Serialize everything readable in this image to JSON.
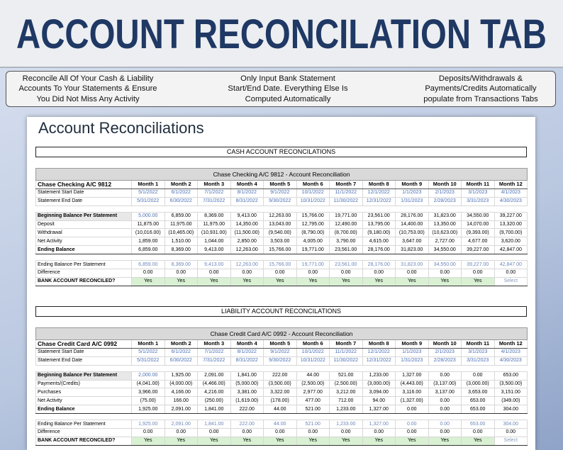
{
  "header": {
    "title": "ACCOUNT RECONCILATION TAB"
  },
  "features": [
    "Reconcile All Of Your Cash & Liability Accounts To Your Statements & Ensure You Did Not Miss Any Activity",
    "Only Input Bank Statement Start/End Date. Everything Else Is Computed Automatically",
    "Deposits/Withdrawals & Payments/Credits Automatically populate from Transactions Tabs"
  ],
  "sheet": {
    "title": "Account Reconciliations",
    "sections": [
      {
        "heading": "CASH ACCOUNT RECONCILATIONS",
        "table": {
          "title": "Chase Checking A/C 9812 - Account Reconciliation",
          "columns": [
            "Chase Checking A/C 9812",
            "Month 1",
            "Month 2",
            "Month 3",
            "Month 4",
            "Month 5",
            "Month 6",
            "Month 7",
            "Month 8",
            "Month 9",
            "Month 10",
            "Month 11",
            "Month 12"
          ],
          "rows": [
            [
              "Statement Start Date",
              "5/1/2022",
              "6/1/2022",
              "7/1/2022",
              "8/1/2022",
              "9/1/2022",
              "10/1/2022",
              "11/1/2022",
              "12/1/2022",
              "1/1/2023",
              "2/1/2023",
              "3/1/2023",
              "4/1/2023"
            ],
            [
              "Statement End Date",
              "5/31/2022",
              "6/30/2022",
              "7/31/2022",
              "8/31/2022",
              "9/30/2022",
              "10/31/2022",
              "11/30/2022",
              "12/31/2022",
              "1/31/2023",
              "2/28/2023",
              "3/31/2023",
              "4/30/2023"
            ],
            [
              "Beginning Balance Per Statement",
              "5,000.00",
              "6,859.00",
              "8,369.00",
              "9,413.00",
              "12,263.00",
              "15,766.00",
              "19,771.00",
              "23,561.00",
              "28,176.00",
              "31,823.00",
              "34,550.00",
              "39,227.00"
            ],
            [
              "Deposit",
              "11,875.00",
              "11,975.00",
              "11,975.00",
              "14,350.00",
              "13,043.00",
              "12,795.00",
              "12,490.00",
              "13,795.00",
              "14,400.00",
              "13,350.00",
              "14,070.00",
              "13,320.00"
            ],
            [
              "Withdrawal",
              "(10,016.00)",
              "(10,465.00)",
              "(10,931.00)",
              "(11,500.00)",
              "(9,540.00)",
              "(8,790.00)",
              "(8,700.00)",
              "(9,180.00)",
              "(10,753.00)",
              "(10,623.00)",
              "(9,393.00)",
              "(9,700.00)"
            ],
            [
              "Net Activity",
              "1,859.00",
              "1,510.00",
              "1,044.00",
              "2,850.00",
              "3,503.00",
              "4,005.00",
              "3,790.00",
              "4,615.00",
              "3,647.00",
              "2,727.00",
              "4,677.00",
              "3,620.00"
            ],
            [
              "Ending Balance",
              "6,859.00",
              "8,369.00",
              "9,413.00",
              "12,263.00",
              "15,766.00",
              "19,771.00",
              "23,561.00",
              "28,176.00",
              "31,823.00",
              "34,550.00",
              "39,227.00",
              "42,847.00"
            ],
            [
              "Ending Balance Per Statement",
              "6,859.00",
              "8,369.00",
              "9,413.00",
              "12,263.00",
              "15,766.00",
              "19,771.00",
              "23,561.00",
              "28,176.00",
              "31,823.00",
              "34,550.00",
              "39,227.00",
              "42,847.00"
            ],
            [
              "Difference",
              "0.00",
              "0.00",
              "0.00",
              "0.00",
              "0.00",
              "0.00",
              "0.00",
              "0.00",
              "0.00",
              "0.00",
              "0.00",
              "0.00"
            ],
            [
              "BANK ACCOUNT RECONCILED?",
              "Yes",
              "Yes",
              "Yes",
              "Yes",
              "Yes",
              "Yes",
              "Yes",
              "Yes",
              "Yes",
              "Yes",
              "Yes",
              "Select"
            ]
          ]
        }
      },
      {
        "heading": "LIABILITY ACCOUNT RECONCILATIONS",
        "table": {
          "title": "Chase Credit Card A/C 0992 - Account Reconciliation",
          "columns": [
            "Chase Credit Card A/C 0992",
            "Month 1",
            "Month 2",
            "Month 3",
            "Month 4",
            "Month 5",
            "Month 6",
            "Month 7",
            "Month 8",
            "Month 9",
            "Month 10",
            "Month 11",
            "Month 12"
          ],
          "rows": [
            [
              "Statement Start Date",
              "5/1/2022",
              "6/1/2022",
              "7/1/2022",
              "8/1/2022",
              "9/1/2022",
              "10/1/2022",
              "11/1/2022",
              "12/1/2022",
              "1/1/2023",
              "2/1/2023",
              "3/1/2023",
              "4/1/2023"
            ],
            [
              "Statement End Date",
              "5/31/2022",
              "6/30/2022",
              "7/31/2022",
              "8/31/2022",
              "9/30/2022",
              "10/31/2022",
              "11/30/2022",
              "12/31/2022",
              "1/31/2023",
              "2/28/2023",
              "3/31/2023",
              "4/30/2023"
            ],
            [
              "Beginning Balance Per Statement",
              "2,000.00",
              "1,925.00",
              "2,091.00",
              "1,841.00",
              "222.00",
              "44.00",
              "521.00",
              "1,233.00",
              "1,327.00",
              "0.00",
              "0.00",
              "653.00"
            ],
            [
              "Payments/(Credits)",
              "(4,041.00)",
              "(4,000.00)",
              "(4,466.00)",
              "(5,000.00)",
              "(3,500.00)",
              "(2,500.00)",
              "(2,500.00)",
              "(3,000.00)",
              "(4,443.00)",
              "(3,137.00)",
              "(3,000.00)",
              "(3,500.00)"
            ],
            [
              "Purchases",
              "3,966.00",
              "4,166.00",
              "4,216.00",
              "3,381.00",
              "3,322.00",
              "2,977.00",
              "3,212.00",
              "3,094.00",
              "3,116.00",
              "3,137.00",
              "3,653.00",
              "3,151.00"
            ],
            [
              "Net Activity",
              "(75.00)",
              "166.00",
              "(250.00)",
              "(1,619.00)",
              "(178.00)",
              "477.00",
              "712.00",
              "94.00",
              "(1,327.00)",
              "0.00",
              "653.00",
              "(349.00)"
            ],
            [
              "Ending Balance",
              "1,925.00",
              "2,091.00",
              "1,841.00",
              "222.00",
              "44.00",
              "521.00",
              "1,233.00",
              "1,327.00",
              "0.00",
              "0.00",
              "653.00",
              "304.00"
            ],
            [
              "Ending Balance Per Statement",
              "1,925.00",
              "2,091.00",
              "1,841.00",
              "222.00",
              "44.00",
              "521.00",
              "1,233.00",
              "1,327.00",
              "0.00",
              "0.00",
              "653.00",
              "304.00"
            ],
            [
              "Difference",
              "0.00",
              "0.00",
              "0.00",
              "0.00",
              "0.00",
              "0.00",
              "0.00",
              "0.00",
              "0.00",
              "0.00",
              "0.00",
              "0.00"
            ],
            [
              "BANK ACCOUNT RECONCILED?",
              "Yes",
              "Yes",
              "Yes",
              "Yes",
              "Yes",
              "Yes",
              "Yes",
              "Yes",
              "Yes",
              "Yes",
              "Yes",
              "Select"
            ]
          ]
        }
      }
    ]
  }
}
